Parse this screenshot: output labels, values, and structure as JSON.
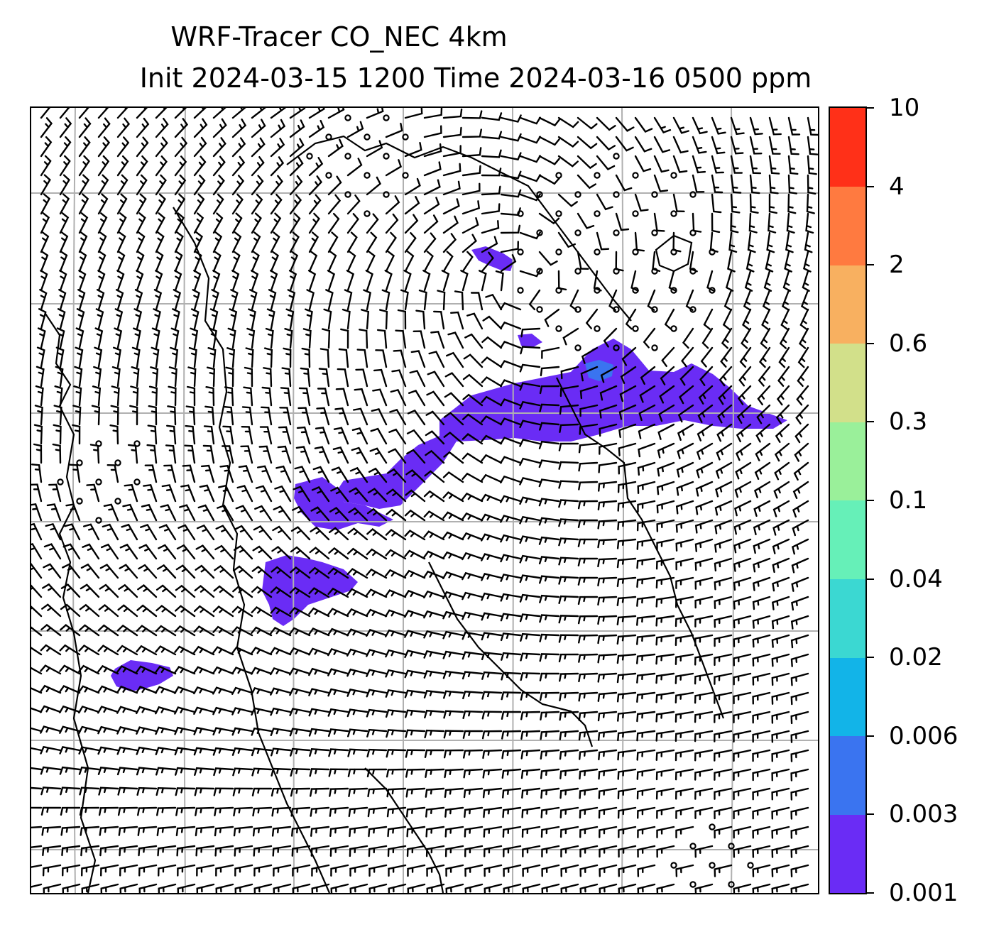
{
  "title": {
    "line1": "WRF-Tracer CO_NEC 4km",
    "line2": "Init 2024-03-15 1200 Time 2024-03-16 0500 ppm"
  },
  "colorbar": {
    "levels": [
      "0.001",
      "0.003",
      "0.006",
      "0.02",
      "0.04",
      "0.1",
      "0.3",
      "0.6",
      "2",
      "4",
      "10"
    ],
    "colors": [
      "#6a2cf5",
      "#3a74f0",
      "#12b4e8",
      "#3bd8d2",
      "#66f0b8",
      "#9af09a",
      "#d2e08a",
      "#f8b060",
      "#ff7a40",
      "#ff3018"
    ]
  },
  "map": {
    "tracer_color": "#6a2cf5",
    "tracer_core_color": "#3a74f0",
    "grid_color": "#b0b0b0",
    "coast_color": "#000000",
    "barb_color": "#000000"
  }
}
